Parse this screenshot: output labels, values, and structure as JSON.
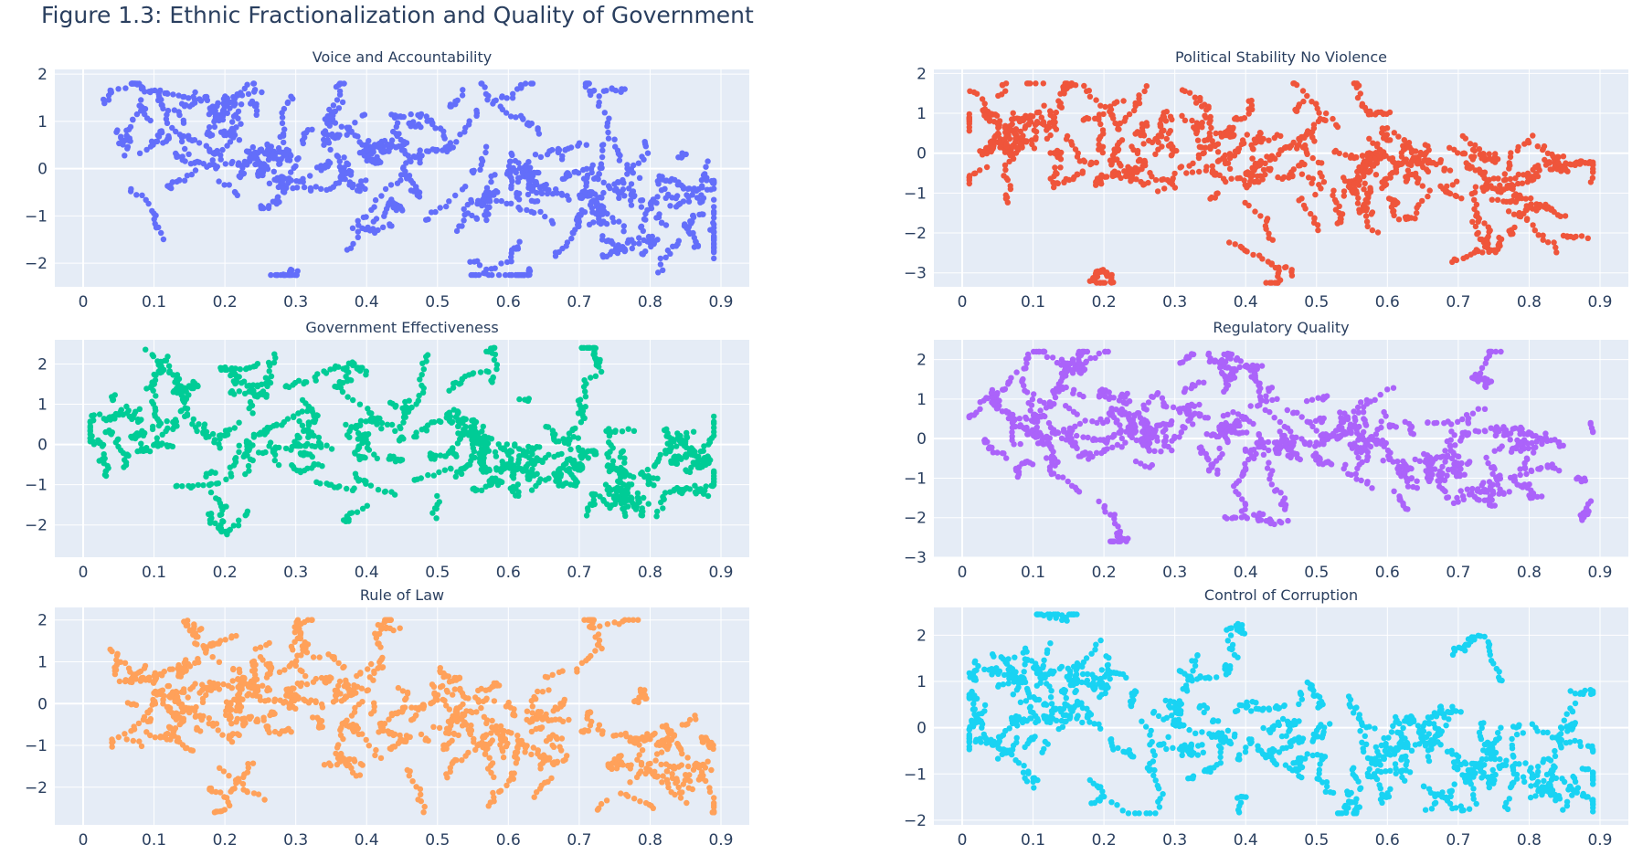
{
  "title": "Figure 1.3: Ethnic Fractionalization and Quality of Government",
  "chart_data": [
    {
      "type": "scatter",
      "title": "Voice and Accountability",
      "color": "#636efa",
      "xlim": [
        -0.04,
        0.94
      ],
      "ylim": [
        -2.5,
        2.1
      ],
      "xticks": [
        0,
        0.1,
        0.2,
        0.3,
        0.4,
        0.5,
        0.6,
        0.7,
        0.8,
        0.9
      ],
      "yticks": [
        -2,
        -1,
        0,
        1,
        2
      ],
      "band": {
        "x": [
          0.01,
          0.89
        ],
        "y": [
          -2.25,
          1.8
        ],
        "center": [
          0.9,
          0.35,
          -0.05,
          -0.45,
          -0.85
        ],
        "seed": 11
      },
      "clusters": [
        {
          "x": 0.1,
          "y": 1.55
        },
        {
          "x": 0.2,
          "y": 1.5
        },
        {
          "x": 0.35,
          "y": 1.3
        },
        {
          "x": 0.58,
          "y": 1.35
        },
        {
          "x": 0.72,
          "y": 1.5
        },
        {
          "x": 0.63,
          "y": -2.1
        },
        {
          "x": 0.57,
          "y": -2.15
        },
        {
          "x": 0.3,
          "y": -2.05
        }
      ]
    },
    {
      "type": "scatter",
      "title": "Political Stability No Violence",
      "color": "#ef553b",
      "xlim": [
        -0.04,
        0.94
      ],
      "ylim": [
        -3.35,
        2.1
      ],
      "xticks": [
        0,
        0.1,
        0.2,
        0.3,
        0.4,
        0.5,
        0.6,
        0.7,
        0.8,
        0.9
      ],
      "yticks": [
        -3,
        -2,
        -1,
        0,
        1,
        2
      ],
      "band": {
        "x": [
          0.01,
          0.89
        ],
        "y": [
          -3.25,
          1.75
        ],
        "center": [
          0.4,
          0.3,
          -0.1,
          -0.4,
          -0.9
        ],
        "seed": 23
      },
      "clusters": [
        {
          "x": 0.2,
          "y": -2.9
        },
        {
          "x": 0.43,
          "y": -2.7
        },
        {
          "x": 0.75,
          "y": -2.5
        },
        {
          "x": 0.14,
          "y": 1.4
        },
        {
          "x": 0.35,
          "y": 1.1
        },
        {
          "x": 0.57,
          "y": 1.0
        }
      ]
    },
    {
      "type": "scatter",
      "title": "Government Effectiveness",
      "color": "#00cc96",
      "xlim": [
        -0.04,
        0.94
      ],
      "ylim": [
        -2.8,
        2.6
      ],
      "xticks": [
        0,
        0.1,
        0.2,
        0.3,
        0.4,
        0.5,
        0.6,
        0.7,
        0.8,
        0.9
      ],
      "yticks": [
        -2,
        -1,
        0,
        1,
        2
      ],
      "band": {
        "x": [
          0.01,
          0.89
        ],
        "y": [
          -2.35,
          2.4
        ],
        "center": [
          0.6,
          0.3,
          -0.1,
          -0.4,
          -0.8
        ],
        "seed": 37
      },
      "clusters": [
        {
          "x": 0.12,
          "y": 2.05
        },
        {
          "x": 0.2,
          "y": 1.9
        },
        {
          "x": 0.38,
          "y": 2.0
        },
        {
          "x": 0.58,
          "y": 1.8
        },
        {
          "x": 0.73,
          "y": 1.9
        },
        {
          "x": 0.2,
          "y": -2.25
        }
      ]
    },
    {
      "type": "scatter",
      "title": "Regulatory Quality",
      "color": "#ab63fa",
      "xlim": [
        -0.04,
        0.94
      ],
      "ylim": [
        -3.0,
        2.5
      ],
      "xticks": [
        0,
        0.1,
        0.2,
        0.3,
        0.4,
        0.5,
        0.6,
        0.7,
        0.8,
        0.9
      ],
      "yticks": [
        -3,
        -2,
        -1,
        0,
        1,
        2
      ],
      "band": {
        "x": [
          0.01,
          0.89
        ],
        "y": [
          -2.6,
          2.2
        ],
        "center": [
          0.7,
          0.4,
          0.0,
          -0.3,
          -0.7
        ],
        "seed": 41
      },
      "clusters": [
        {
          "x": 0.15,
          "y": 1.7
        },
        {
          "x": 0.38,
          "y": 1.8
        },
        {
          "x": 0.72,
          "y": 1.6
        },
        {
          "x": 0.22,
          "y": -2.3
        },
        {
          "x": 0.41,
          "y": -2.0
        }
      ]
    },
    {
      "type": "scatter",
      "title": "Rule of Law",
      "color": "#ffa15a",
      "xlim": [
        -0.04,
        0.94
      ],
      "ylim": [
        -2.9,
        2.3
      ],
      "xticks": [
        0,
        0.1,
        0.2,
        0.3,
        0.4,
        0.5,
        0.6,
        0.7,
        0.8,
        0.9
      ],
      "yticks": [
        -2,
        -1,
        0,
        1,
        2
      ],
      "band": {
        "x": [
          0.01,
          0.89
        ],
        "y": [
          -2.6,
          2.0
        ],
        "center": [
          0.3,
          0.1,
          -0.3,
          -0.6,
          -0.9
        ],
        "seed": 53
      },
      "clusters": [
        {
          "x": 0.14,
          "y": 1.9
        },
        {
          "x": 0.3,
          "y": 1.85
        },
        {
          "x": 0.42,
          "y": 1.9
        },
        {
          "x": 0.72,
          "y": 1.75
        },
        {
          "x": 0.2,
          "y": -2.2
        }
      ]
    },
    {
      "type": "scatter",
      "title": "Control of Corruption",
      "color": "#19d3f3",
      "xlim": [
        -0.04,
        0.94
      ],
      "ylim": [
        -2.1,
        2.6
      ],
      "xticks": [
        0,
        0.1,
        0.2,
        0.3,
        0.4,
        0.5,
        0.6,
        0.7,
        0.8,
        0.9
      ],
      "yticks": [
        -2,
        -1,
        0,
        1,
        2
      ],
      "band": {
        "x": [
          0.01,
          0.89
        ],
        "y": [
          -1.85,
          2.45
        ],
        "center": [
          0.5,
          0.2,
          -0.2,
          -0.5,
          -0.8
        ],
        "seed": 67
      },
      "clusters": [
        {
          "x": 0.15,
          "y": 2.3
        },
        {
          "x": 0.38,
          "y": 2.2
        },
        {
          "x": 0.73,
          "y": 2.0
        },
        {
          "x": 0.2,
          "y": -1.6
        },
        {
          "x": 0.55,
          "y": -1.5
        }
      ]
    }
  ]
}
